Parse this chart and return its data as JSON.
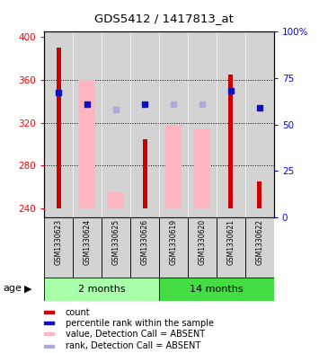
{
  "title": "GDS5412 / 1417813_at",
  "samples": [
    "GSM1330623",
    "GSM1330624",
    "GSM1330625",
    "GSM1330626",
    "GSM1330619",
    "GSM1330620",
    "GSM1330621",
    "GSM1330622"
  ],
  "ylim_left": [
    232,
    405
  ],
  "ylim_right": [
    0,
    100
  ],
  "yticks_left": [
    240,
    280,
    320,
    360,
    400
  ],
  "yticks_right": [
    0,
    25,
    50,
    75,
    100
  ],
  "yticklabels_right": [
    "0",
    "25",
    "50",
    "75",
    "100%"
  ],
  "red_values": [
    390,
    null,
    null,
    305,
    null,
    null,
    365,
    265
  ],
  "pink_values": [
    null,
    360,
    255,
    null,
    318,
    315,
    null,
    null
  ],
  "blue_values": [
    348,
    337,
    null,
    337,
    null,
    null,
    350,
    334
  ],
  "light_blue_values": [
    null,
    337,
    332,
    null,
    337,
    337,
    null,
    null
  ],
  "red_color": "#CC0000",
  "pink_color": "#FFB6C1",
  "blue_color": "#1111BB",
  "light_blue_color": "#AAAADD",
  "bg_color": "#D3D3D3",
  "grid_dotted_at": [
    280,
    320,
    360
  ],
  "group_info": [
    {
      "label": "2 months",
      "start": 0,
      "end": 4,
      "color": "#AAFFAA"
    },
    {
      "label": "14 months",
      "start": 4,
      "end": 8,
      "color": "#44DD44"
    }
  ],
  "legend_items": [
    {
      "label": "count",
      "color": "#CC0000"
    },
    {
      "label": "percentile rank within the sample",
      "color": "#1111BB"
    },
    {
      "label": "value, Detection Call = ABSENT",
      "color": "#FFB6C1"
    },
    {
      "label": "rank, Detection Call = ABSENT",
      "color": "#AAAADD"
    }
  ]
}
